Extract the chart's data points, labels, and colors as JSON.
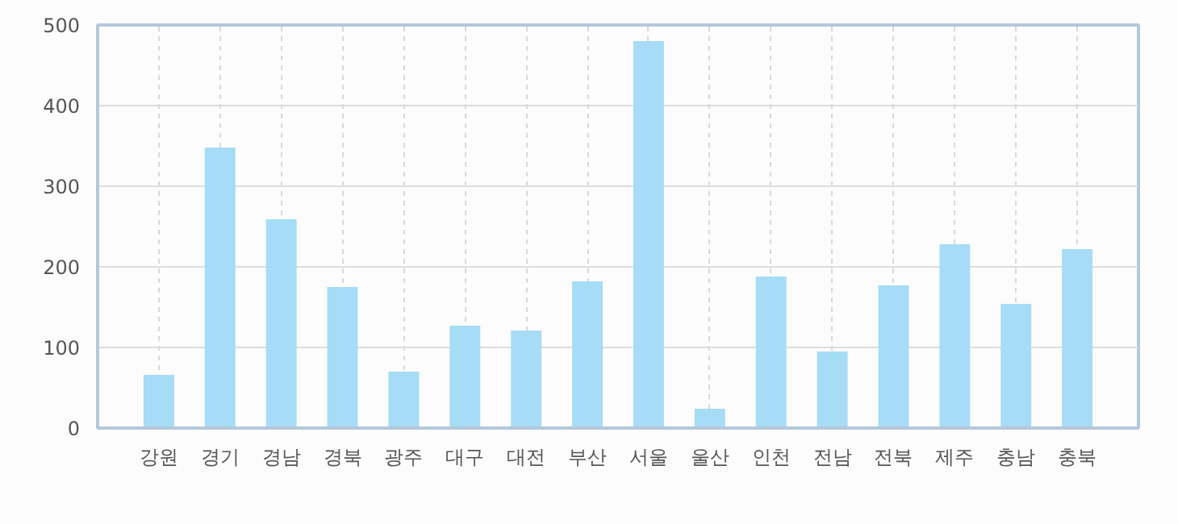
{
  "chart_data": {
    "type": "bar",
    "categories": [
      "강원",
      "경기",
      "경남",
      "경북",
      "광주",
      "대구",
      "대전",
      "부산",
      "서울",
      "울산",
      "인천",
      "전남",
      "전북",
      "제주",
      "충남",
      "충북"
    ],
    "series": [
      {
        "color": "#a6dcf5",
        "values": [
          66,
          348,
          259,
          175,
          70,
          127,
          121,
          182,
          480,
          24,
          188,
          95,
          177,
          228,
          154,
          222
        ]
      }
    ],
    "ylim": [
      0,
      500
    ],
    "yticks": [
      0,
      100,
      200,
      300,
      400,
      500
    ],
    "grid": true
  }
}
